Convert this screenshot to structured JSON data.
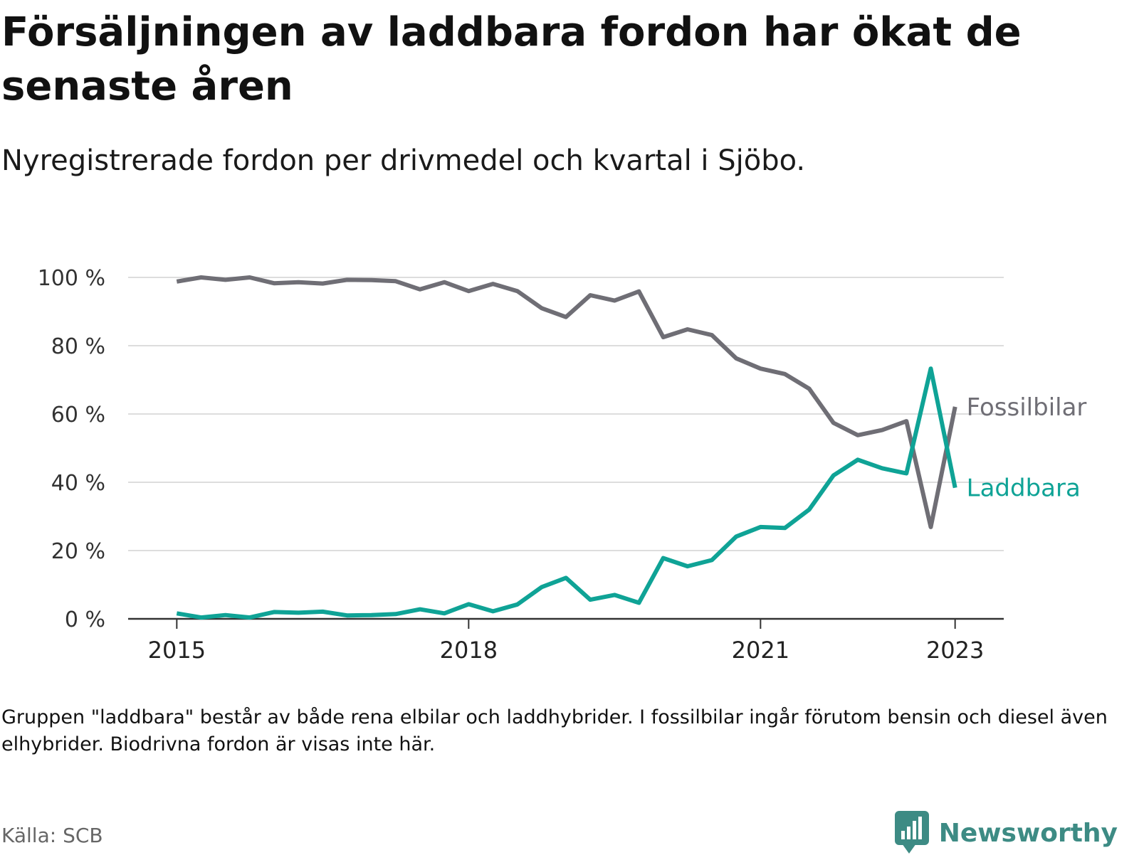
{
  "header": {
    "title": "Försäljningen av laddbara fordon har ökat de senaste åren",
    "subtitle": "Nyregistrerade fordon per drivmedel och kvartal i Sjöbo."
  },
  "footer": {
    "note": "Gruppen \"laddbara\" består av både rena elbilar och laddhybrider. I fossilbilar ingår förutom bensin och diesel även elhybrider. Biodrivna fordon är visas inte här.",
    "source": "Källa: SCB",
    "brand": "Newsworthy"
  },
  "colors": {
    "fossil": "#6f6e75",
    "laddbara": "#0fa396",
    "grid": "#dddddd",
    "axis": "#333333",
    "brand": "#3d8b84"
  },
  "icons": {
    "brand_logo": "bar-chart-speech-bubble-icon"
  },
  "chart_data": {
    "type": "line",
    "title": "Försäljningen av laddbara fordon har ökat de senaste åren",
    "subtitle": "Nyregistrerade fordon per drivmedel och kvartal i Sjöbo.",
    "x_unit": "quarter",
    "x_start": "2015 Q1",
    "x_end": "2023 Q1",
    "xlim": [
      "2014 Q3",
      "2023 Q3"
    ],
    "ylim": [
      0,
      100
    ],
    "y_ticks": [
      0,
      20,
      40,
      60,
      80,
      100
    ],
    "y_tick_labels": [
      "0 %",
      "20 %",
      "40 %",
      "60 %",
      "80 %",
      "100 %"
    ],
    "x_ticks": [
      2015,
      2018,
      2021,
      2023
    ],
    "x_tick_labels": [
      "2015",
      "2018",
      "2021",
      "2023"
    ],
    "grid": true,
    "legend": "inline-right",
    "series": [
      {
        "name": "Fossilbilar",
        "values": [
          98.8,
          100,
          99.3,
          100,
          98.3,
          98.6,
          98.2,
          99.3,
          99.2,
          98.9,
          96.5,
          98.6,
          96,
          98.1,
          96,
          91,
          88.4,
          94.8,
          93.2,
          95.9,
          82.5,
          84.8,
          83.1,
          76.3,
          73.3,
          71.7,
          67.4,
          57.4,
          53.8,
          55.3,
          57.9,
          26.9,
          62.1
        ]
      },
      {
        "name": "Laddbara",
        "values": [
          1.6,
          0.4,
          1.1,
          0.4,
          2,
          1.8,
          2.1,
          1,
          1.1,
          1.4,
          2.8,
          1.6,
          4.3,
          2.2,
          4.2,
          9.3,
          12,
          5.6,
          7,
          4.7,
          17.8,
          15.4,
          17.2,
          24.1,
          26.9,
          26.6,
          32,
          42,
          46.6,
          44.1,
          42.6,
          73.3,
          38.4
        ]
      }
    ]
  }
}
